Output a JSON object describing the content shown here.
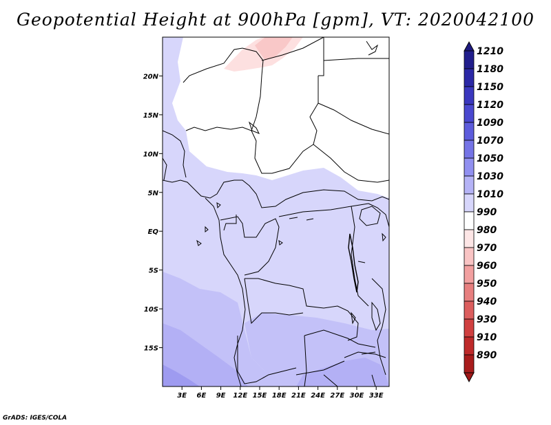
{
  "title": "Geopotential Height at 900hPa [gpm], VT: 2020042100",
  "credit": "GrADS: IGES/COLA",
  "map": {
    "lon_range": [
      0,
      35
    ],
    "lat_range": [
      -20,
      25
    ],
    "lat_ticks": [
      {
        "value": 20,
        "label": "20N"
      },
      {
        "value": 15,
        "label": "15N"
      },
      {
        "value": 10,
        "label": "10N"
      },
      {
        "value": 5,
        "label": "5N"
      },
      {
        "value": 0,
        "label": "EQ"
      },
      {
        "value": -5,
        "label": "5S"
      },
      {
        "value": -10,
        "label": "10S"
      },
      {
        "value": -15,
        "label": "15S"
      }
    ],
    "lon_ticks": [
      {
        "value": 3,
        "label": "3E"
      },
      {
        "value": 6,
        "label": "6E"
      },
      {
        "value": 9,
        "label": "9E"
      },
      {
        "value": 12,
        "label": "12E"
      },
      {
        "value": 15,
        "label": "15E"
      },
      {
        "value": 18,
        "label": "18E"
      },
      {
        "value": 21,
        "label": "21E"
      },
      {
        "value": 24,
        "label": "24E"
      },
      {
        "value": 27,
        "label": "27E"
      },
      {
        "value": 30,
        "label": "30E"
      },
      {
        "value": 33,
        "label": "33E"
      }
    ]
  },
  "colorbar": {
    "levels": [
      {
        "label": "1210",
        "color": "#211e8c"
      },
      {
        "label": "1180",
        "color": "#2b28a6"
      },
      {
        "label": "1150",
        "color": "#3a37be"
      },
      {
        "label": "1120",
        "color": "#4a48cf"
      },
      {
        "label": "1090",
        "color": "#5d5cdc"
      },
      {
        "label": "1070",
        "color": "#7574e6"
      },
      {
        "label": "1050",
        "color": "#9190f0"
      },
      {
        "label": "1030",
        "color": "#b5b3f6"
      },
      {
        "label": "1010",
        "color": "#d7d6fb"
      },
      {
        "label": "990",
        "color": "#ffffff"
      },
      {
        "label": "980",
        "color": "#fde6e6"
      },
      {
        "label": "970",
        "color": "#f9c4c4"
      },
      {
        "label": "960",
        "color": "#f2a0a0"
      },
      {
        "label": "950",
        "color": "#e77f7f"
      },
      {
        "label": "940",
        "color": "#dc5e5e"
      },
      {
        "label": "930",
        "color": "#d04040"
      },
      {
        "label": "910",
        "color": "#be2a2a"
      },
      {
        "label": "890",
        "color": "#a81c1c"
      }
    ],
    "top_arrow_color": "#1e1a80",
    "bottom_arrow_color": "#a01818"
  },
  "field_colors": {
    "h1010": "#d7d6fb",
    "h1030": "#c3c1f8",
    "h1050": "#b3b0f5",
    "h1070": "#9e9bf0",
    "h990": "#ffffff",
    "h980": "#fde0e0",
    "h970": "#f9c8c8"
  }
}
